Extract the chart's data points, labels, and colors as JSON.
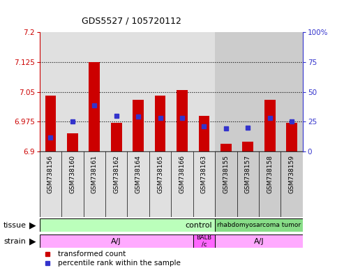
{
  "title": "GDS5527 / 105720112",
  "samples": [
    "GSM738156",
    "GSM738160",
    "GSM738161",
    "GSM738162",
    "GSM738164",
    "GSM738165",
    "GSM738166",
    "GSM738163",
    "GSM738155",
    "GSM738157",
    "GSM738158",
    "GSM738159"
  ],
  "red_values": [
    7.04,
    6.945,
    7.125,
    6.972,
    7.03,
    7.04,
    7.055,
    6.99,
    6.92,
    6.925,
    7.03,
    6.972
  ],
  "blue_values": [
    6.935,
    6.975,
    7.015,
    6.99,
    6.988,
    6.985,
    6.985,
    6.963,
    6.958,
    6.96,
    6.985,
    6.975
  ],
  "y_min": 6.9,
  "y_max": 7.2,
  "y_ticks_left": [
    6.9,
    6.975,
    7.05,
    7.125,
    7.2
  ],
  "y_ticks_left_labels": [
    "6.9",
    "6.975",
    "7.05",
    "7.125",
    "7.2"
  ],
  "y2_ticks_pct": [
    0,
    25,
    50,
    75,
    100
  ],
  "y2_ticks_labels": [
    "0",
    "25",
    "50",
    "75",
    "100%"
  ],
  "bg_color_control": "#e0e0e0",
  "bg_color_tumor": "#cccccc",
  "red_color": "#cc0000",
  "blue_color": "#3333cc",
  "bar_base": 6.9,
  "bar_width": 0.5,
  "tissue_control_color": "#bbffbb",
  "tissue_tumor_color": "#88dd88",
  "strain_color": "#ffaaff",
  "strain_balb_color": "#ff66ff",
  "n_control": 8,
  "n_balb": 1,
  "n_tumor": 4
}
